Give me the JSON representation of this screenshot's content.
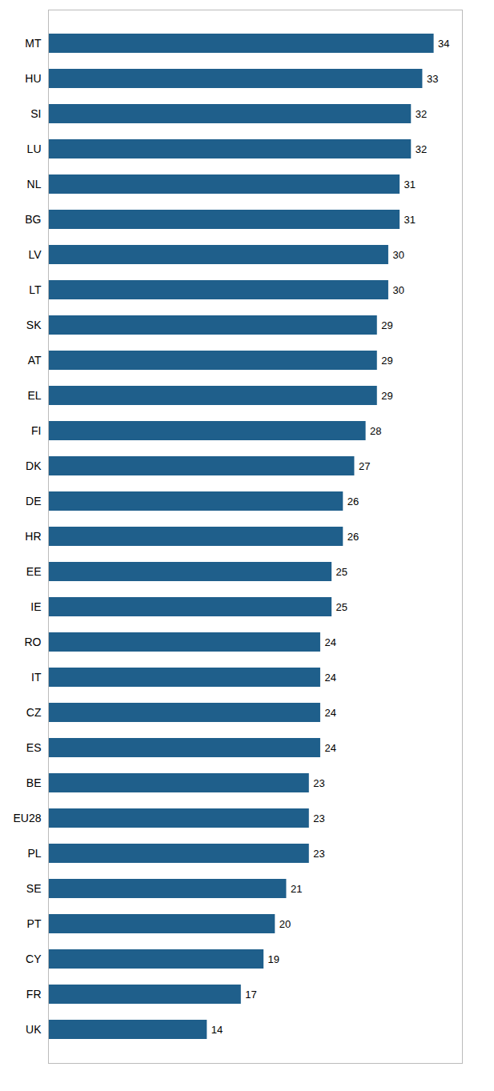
{
  "chart_data": {
    "type": "bar",
    "orientation": "horizontal",
    "categories": [
      "MT",
      "HU",
      "SI",
      "LU",
      "NL",
      "BG",
      "LV",
      "LT",
      "SK",
      "AT",
      "EL",
      "FI",
      "DK",
      "DE",
      "HR",
      "EE",
      "IE",
      "RO",
      "IT",
      "CZ",
      "ES",
      "BE",
      "EU28",
      "PL",
      "SE",
      "PT",
      "CY",
      "FR",
      "UK"
    ],
    "values": [
      34,
      33,
      32,
      32,
      31,
      31,
      30,
      30,
      29,
      29,
      29,
      28,
      27,
      26,
      26,
      25,
      25,
      24,
      24,
      24,
      24,
      23,
      23,
      23,
      21,
      20,
      19,
      17,
      14
    ],
    "color": "#1f5f8b",
    "xlim": [
      0,
      36.5
    ],
    "xticks": [],
    "grid": false,
    "data_labels": true,
    "tick_labels": "y"
  }
}
